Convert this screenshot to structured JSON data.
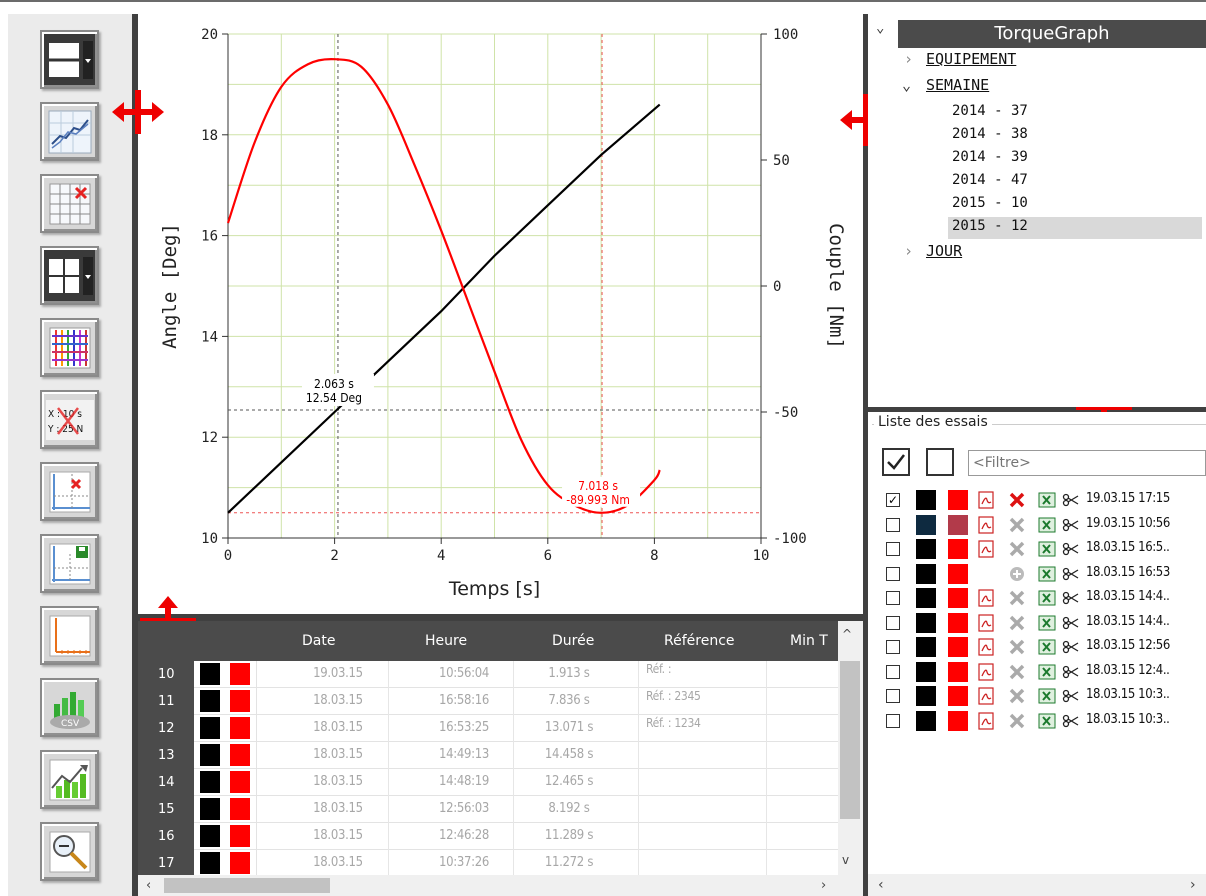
{
  "chart_data": {
    "type": "line",
    "xlabel": "Temps [s]",
    "ylabel_left": "Angle [Deg]",
    "ylabel_right": "Couple [Nm]",
    "xlim": [
      0,
      10
    ],
    "ylim_left": [
      10,
      20
    ],
    "ylim_right": [
      -100,
      100
    ],
    "x_ticks": [
      "0",
      "2",
      "4",
      "6",
      "8",
      "10"
    ],
    "y_left_ticks": [
      "10",
      "12",
      "14",
      "16",
      "18",
      "20"
    ],
    "y_right_ticks": [
      "-100",
      "-50",
      "0",
      "50",
      "100"
    ],
    "grid": true,
    "series": [
      {
        "axis": "left",
        "color": "#000000",
        "x": [
          0,
          1,
          2,
          3,
          4,
          5,
          6,
          7,
          8.1
        ],
        "y": [
          10.5,
          11.5,
          12.5,
          13.5,
          14.5,
          15.6,
          16.6,
          17.6,
          18.6
        ]
      },
      {
        "axis": "right",
        "color": "#ff0000",
        "x": [
          0,
          0.5,
          1,
          1.5,
          2,
          2.5,
          3,
          3.5,
          4,
          4.5,
          5,
          5.5,
          6,
          6.5,
          7,
          7.5,
          8,
          8.1
        ],
        "y": [
          25,
          57,
          79,
          88,
          90,
          87,
          72,
          48,
          22,
          -6,
          -34,
          -61,
          -79,
          -87,
          -90,
          -87,
          -77,
          -73
        ]
      }
    ],
    "annotations": [
      {
        "line1": "2.063 s",
        "line2": "12.54 Deg",
        "color": "#000000",
        "x": 2.063,
        "y_left": 12.54
      },
      {
        "line1": "7.018 s",
        "line2": "-89.993 Nm",
        "color": "#ff0000",
        "x": 7.018,
        "y_right": -89.993
      }
    ]
  },
  "grid": {
    "headers": [
      "Date",
      "Heure",
      "Durée",
      "Référence",
      "Min T"
    ],
    "rows": [
      {
        "num": "10",
        "date": "19.03.15",
        "heure": "10:56:04",
        "duree": "1.913 s",
        "ref": "Réf. :"
      },
      {
        "num": "11",
        "date": "18.03.15",
        "heure": "16:58:16",
        "duree": "7.836 s",
        "ref": "Réf. : 2345"
      },
      {
        "num": "12",
        "date": "18.03.15",
        "heure": "16:53:25",
        "duree": "13.071 s",
        "ref": "Réf. : 1234"
      },
      {
        "num": "13",
        "date": "18.03.15",
        "heure": "14:49:13",
        "duree": "14.458 s",
        "ref": ""
      },
      {
        "num": "14",
        "date": "18.03.15",
        "heure": "14:48:19",
        "duree": "12.465 s",
        "ref": ""
      },
      {
        "num": "15",
        "date": "18.03.15",
        "heure": "12:56:03",
        "duree": "8.192 s",
        "ref": ""
      },
      {
        "num": "16",
        "date": "18.03.15",
        "heure": "12:46:28",
        "duree": "11.289 s",
        "ref": ""
      },
      {
        "num": "17",
        "date": "18.03.15",
        "heure": "10:37:26",
        "duree": "11.272 s",
        "ref": ""
      }
    ]
  },
  "tree": {
    "title": "TorqueGraph",
    "equipement": "EQUIPEMENT",
    "semaine": "SEMAINE",
    "weeks": [
      "2014 - 37",
      "2014 - 38",
      "2014 - 39",
      "2014 - 47",
      "2015 - 10",
      "2015 - 12"
    ],
    "selected_week": "2015 - 12",
    "jour": "JOUR"
  },
  "list": {
    "group_title": "Liste des essais",
    "filter_placeholder": "<Filtre>",
    "rows": [
      {
        "checked": true,
        "label": "19.03.15 17:15"
      },
      {
        "checked": false,
        "label": "19.03.15 10:56"
      },
      {
        "checked": false,
        "label": "18.03.15 16:5.."
      },
      {
        "checked": false,
        "label": "18.03.15 16:53"
      },
      {
        "checked": false,
        "label": "18.03.15 14:4.."
      },
      {
        "checked": false,
        "label": "18.03.15 14:4.."
      },
      {
        "checked": false,
        "label": "18.03.15 12:56"
      },
      {
        "checked": false,
        "label": "18.03.15 12:4.."
      },
      {
        "checked": false,
        "label": "18.03.15 10:3.."
      },
      {
        "checked": false,
        "label": "18.03.15 10:3.."
      }
    ]
  },
  "toolbar": {
    "axis_button_text_x": "X : 10 s",
    "axis_button_text_y": "Y : 25 N",
    "csv_label": "CSV"
  },
  "colors": {
    "accent_red": "#ff0000",
    "dark": "#404040",
    "header": "#4b4b4b"
  }
}
